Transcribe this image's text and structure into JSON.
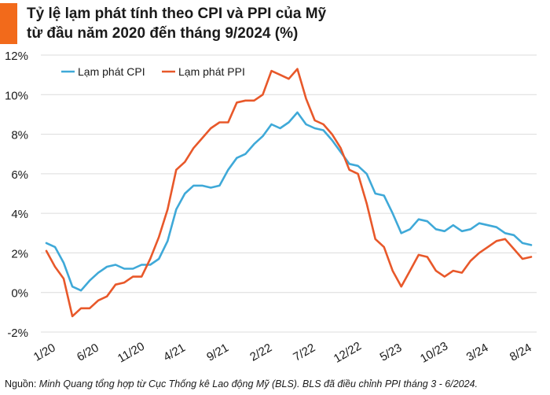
{
  "header": {
    "title_line1": "Tỷ lệ lạm phát tính theo CPI và PPI của Mỹ",
    "title_line2": "từ đầu năm 2020 đến tháng 9/2024 (%)",
    "accent_color": "#f26a1b"
  },
  "source": {
    "label": "Nguồn:",
    "text": "Minh Quang tổng hợp từ Cục Thống kê Lao động Mỹ (BLS). BLS đã điều chỉnh PPI tháng 3 - 6/2024."
  },
  "chart_data": {
    "type": "line",
    "title": "Tỷ lệ lạm phát tính theo CPI và PPI của Mỹ từ đầu năm 2020 đến tháng 9/2024 (%)",
    "xlabel": "",
    "ylabel": "%",
    "ylim": [
      -2,
      12
    ],
    "yticks": [
      -2,
      0,
      2,
      4,
      6,
      8,
      10,
      12
    ],
    "ytick_labels": [
      "-2%",
      "0%",
      "2%",
      "4%",
      "6%",
      "8%",
      "10%",
      "12%"
    ],
    "grid": true,
    "legend_position": "top-left",
    "x_tick_labels": [
      {
        "index": 0,
        "label": "1/20"
      },
      {
        "index": 5,
        "label": "6/20"
      },
      {
        "index": 10,
        "label": "11/20"
      },
      {
        "index": 15,
        "label": "4/21"
      },
      {
        "index": 20,
        "label": "9/21"
      },
      {
        "index": 25,
        "label": "2/22"
      },
      {
        "index": 30,
        "label": "7/22"
      },
      {
        "index": 35,
        "label": "12/22"
      },
      {
        "index": 40,
        "label": "5/23"
      },
      {
        "index": 45,
        "label": "10/23"
      },
      {
        "index": 50,
        "label": "3/24"
      },
      {
        "index": 55,
        "label": "8/24"
      }
    ],
    "series": [
      {
        "name": "Lạm phát CPI",
        "color": "#3fa9d8",
        "values": [
          2.5,
          2.3,
          1.5,
          0.3,
          0.1,
          0.6,
          1.0,
          1.3,
          1.4,
          1.2,
          1.2,
          1.4,
          1.4,
          1.7,
          2.6,
          4.2,
          5.0,
          5.4,
          5.4,
          5.3,
          5.4,
          6.2,
          6.8,
          7.0,
          7.5,
          7.9,
          8.5,
          8.3,
          8.6,
          9.1,
          8.5,
          8.3,
          8.2,
          7.7,
          7.1,
          6.5,
          6.4,
          6.0,
          5.0,
          4.9,
          4.0,
          3.0,
          3.2,
          3.7,
          3.6,
          3.2,
          3.1,
          3.4,
          3.1,
          3.2,
          3.5,
          3.4,
          3.3,
          3.0,
          2.9,
          2.5,
          2.4
        ]
      },
      {
        "name": "Lạm phát PPI",
        "color": "#e8582a",
        "values": [
          2.1,
          1.3,
          0.7,
          -1.2,
          -0.8,
          -0.8,
          -0.4,
          -0.2,
          0.4,
          0.5,
          0.8,
          0.8,
          1.7,
          2.8,
          4.2,
          6.2,
          6.6,
          7.3,
          7.8,
          8.3,
          8.6,
          8.6,
          9.6,
          9.7,
          9.7,
          10.0,
          11.2,
          11.0,
          10.8,
          11.3,
          9.8,
          8.7,
          8.5,
          8.0,
          7.3,
          6.2,
          6.0,
          4.5,
          2.7,
          2.3,
          1.1,
          0.3,
          1.1,
          1.9,
          1.8,
          1.1,
          0.8,
          1.1,
          1.0,
          1.6,
          2.0,
          2.3,
          2.6,
          2.7,
          2.2,
          1.7,
          1.8
        ]
      }
    ]
  }
}
